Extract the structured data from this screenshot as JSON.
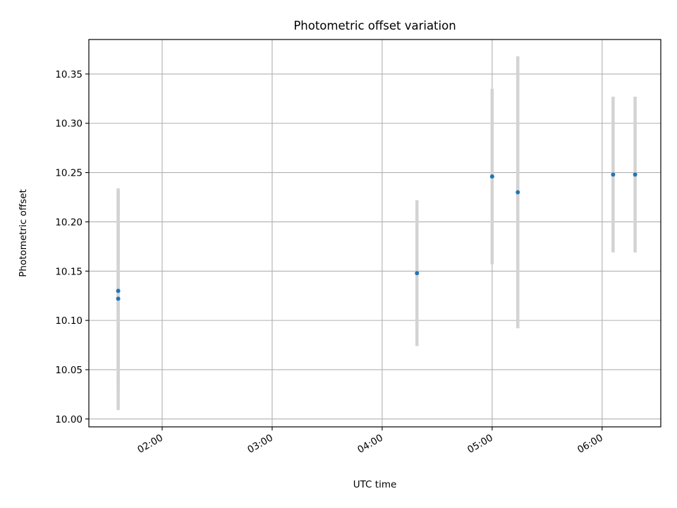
{
  "chart_data": {
    "type": "scatter",
    "title": "Photometric offset variation",
    "xlabel": "UTC time",
    "ylabel": "Photometric offset",
    "x_axis": {
      "kind": "time",
      "xlim": [
        "01:20",
        "06:32"
      ],
      "ticks": [
        "02:00",
        "03:00",
        "04:00",
        "05:00",
        "06:00"
      ]
    },
    "y_axis": {
      "ylim": [
        9.992,
        10.385
      ],
      "ticks": [
        10.0,
        10.05,
        10.1,
        10.15,
        10.2,
        10.25,
        10.3,
        10.35
      ],
      "tick_labels": [
        "10.00",
        "10.05",
        "10.10",
        "10.15",
        "10.20",
        "10.25",
        "10.30",
        "10.35"
      ]
    },
    "grid": true,
    "points": [
      {
        "x": "01:36",
        "y": 10.122,
        "err_low": 10.028,
        "err_high": 10.232
      },
      {
        "x": "01:36",
        "y": 10.13,
        "err_low": 10.009,
        "err_high": 10.234
      },
      {
        "x": "04:19",
        "y": 10.148,
        "err_low": 10.074,
        "err_high": 10.222
      },
      {
        "x": "05:00",
        "y": 10.246,
        "err_low": 10.157,
        "err_high": 10.335
      },
      {
        "x": "05:14",
        "y": 10.23,
        "err_low": 10.092,
        "err_high": 10.368
      },
      {
        "x": "06:06",
        "y": 10.248,
        "err_low": 10.169,
        "err_high": 10.327
      },
      {
        "x": "06:18",
        "y": 10.248,
        "err_low": 10.169,
        "err_high": 10.327
      }
    ],
    "colors": {
      "point": "#1f77b4",
      "errorbar": "#d3d3d3",
      "grid": "#b0b0b0",
      "axes": "#000000"
    }
  }
}
